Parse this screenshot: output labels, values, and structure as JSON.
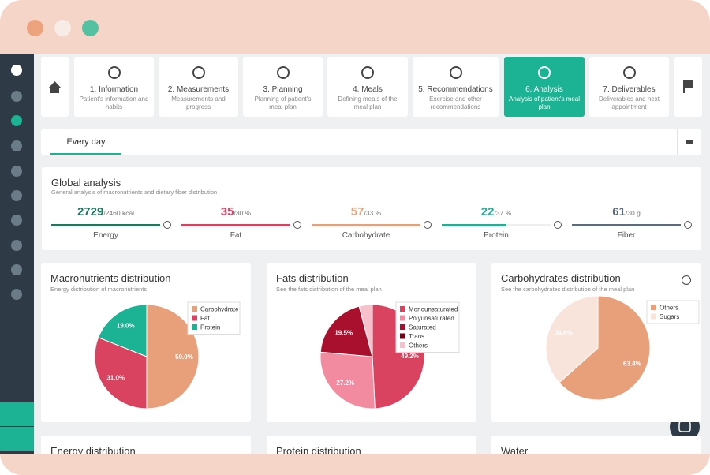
{
  "steps": [
    {
      "title": "1. Information",
      "subtitle": "Patient's information and habits"
    },
    {
      "title": "2. Measurements",
      "subtitle": "Measurements and progress"
    },
    {
      "title": "3. Planning",
      "subtitle": "Planning of patient's meal plan"
    },
    {
      "title": "4. Meals",
      "subtitle": "Defining meals of the meal plan"
    },
    {
      "title": "5. Recommendations",
      "subtitle": "Exercise and other recommendations"
    },
    {
      "title": "6. Analysis",
      "subtitle": "Analysis of patient's meal plan",
      "active": true
    },
    {
      "title": "7. Deliverables",
      "subtitle": "Deliverables and next appointment"
    }
  ],
  "tab": "Every day",
  "global": {
    "title": "Global analysis",
    "subtitle": "General analysis of macronutrients and dietary fiber distribution",
    "metrics": [
      {
        "value": 2729,
        "target": "/2460 kcal",
        "label": "Energy",
        "color": "#1a7b5c"
      },
      {
        "value": 35,
        "target": "/30 %",
        "label": "Fat",
        "color": "#d9435f"
      },
      {
        "value": 57,
        "target": "/33 %",
        "label": "Carbohydrate",
        "color": "#e8a07a"
      },
      {
        "value": 22,
        "target": "/37 %",
        "label": "Protein",
        "color": "#1bb394"
      },
      {
        "value": 61,
        "target": "/30 g",
        "label": "Fiber",
        "color": "#5c6b7d"
      }
    ]
  },
  "charts": [
    {
      "type": "pie",
      "title": "Macronutrients distribution",
      "subtitle": "Energy distribution of macronutrients",
      "categories": [
        "Carbohydrate",
        "Fat",
        "Protein"
      ],
      "values": [
        50.0,
        31.0,
        19.0
      ],
      "value_labels": [
        "50.0%",
        "31.0%",
        "19.0%"
      ],
      "colors": [
        "#e8a07a",
        "#d9435f",
        "#1bb394"
      ]
    },
    {
      "type": "pie",
      "title": "Fats distribution",
      "subtitle": "See the fats distribution of the meal plan",
      "categories": [
        "Monounsaturated",
        "Polyunsaturated",
        "Saturated",
        "Trans",
        "Others"
      ],
      "values": [
        49.2,
        27.2,
        19.5,
        0,
        4.1
      ],
      "value_labels": [
        "49.2%",
        "27.2%",
        "19.5%",
        null,
        null
      ],
      "colors": [
        "#d9435f",
        "#f28ba0",
        "#a8102e",
        "#7a0019",
        "#f8c0cb"
      ]
    },
    {
      "type": "pie",
      "title": "Carbohydrates distribution",
      "subtitle": "See the carbohydrates distribution of the meal plan",
      "categories": [
        "Others",
        "Sugars"
      ],
      "values": [
        63.4,
        36.6
      ],
      "value_labels": [
        "63.4%",
        "36.6%"
      ],
      "colors": [
        "#e8a07a",
        "#f8e4da"
      ]
    }
  ],
  "bottom_cards": [
    "Energy distribution",
    "Protein distribution",
    "Water"
  ]
}
